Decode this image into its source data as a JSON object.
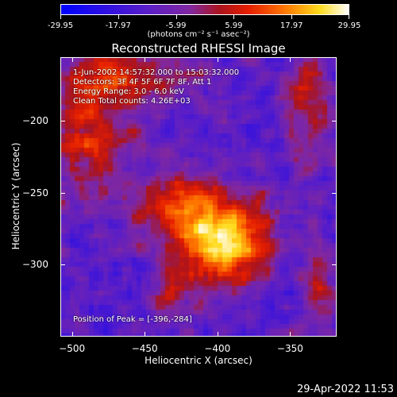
{
  "chart_data": {
    "type": "heatmap",
    "title": "Reconstructed RHESSI Image",
    "xlabel": "Heliocentric X (arcsec)",
    "ylabel": "Heliocentric Y (arcsec)",
    "xlim": [
      -508,
      -318
    ],
    "ylim": [
      -350,
      -156
    ],
    "x_ticks": [
      {
        "value": -500,
        "label": "-500"
      },
      {
        "value": -450,
        "label": "-450"
      },
      {
        "value": -400,
        "label": "-400"
      },
      {
        "value": -350,
        "label": "-350"
      }
    ],
    "y_ticks": [
      {
        "value": -200,
        "label": "-200"
      },
      {
        "value": -250,
        "label": "-250"
      },
      {
        "value": -300,
        "label": "-300"
      }
    ],
    "colorbar": {
      "ticks": [
        "-29.95",
        "-17.97",
        "-5.99",
        "5.99",
        "17.97",
        "29.95"
      ],
      "unit": "(photons cm⁻² s⁻¹ asec⁻²)",
      "range": [
        -29.95,
        29.95
      ]
    },
    "peak": {
      "x": -396,
      "y": -284
    },
    "annotations": [
      "1-Jun-2002 14:57:32.000 to 15:03:32.000",
      "Detectors: 3F 4F 5F 6F 7F 8F, Att 1",
      "Energy Range: 3.0 - 6.0 keV",
      "Clean     Total counts: 4.26E+03"
    ],
    "peak_label": "Position of Peak = [-396,-284]"
  },
  "footer": {
    "timestamp": "29-Apr-2022 11:53"
  }
}
